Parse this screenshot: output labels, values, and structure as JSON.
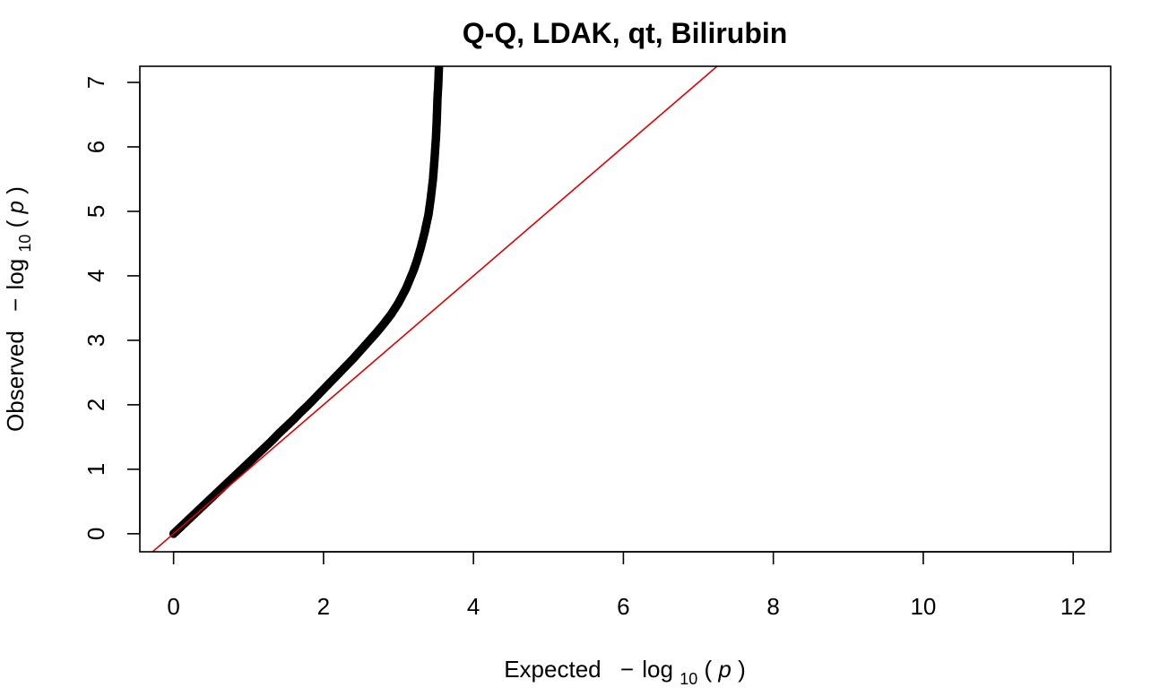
{
  "chart_data": {
    "type": "scatter",
    "title": "Q-Q, LDAK, qt, Bilirubin",
    "xlabel": {
      "prefix": "Expected",
      "minus": "−",
      "log": "log",
      "base": "10",
      "open": "(",
      "var": "p",
      "close": ")"
    },
    "ylabel": {
      "prefix": "Observed",
      "minus": "−",
      "log": "log",
      "base": "10",
      "open": "(",
      "var": "p",
      "close": ")"
    },
    "xlim": [
      -0.45,
      12.5
    ],
    "ylim": [
      -0.28,
      7.25
    ],
    "x_ticks": [
      0,
      2,
      4,
      6,
      8,
      10,
      12
    ],
    "y_ticks": [
      0,
      1,
      2,
      3,
      4,
      5,
      6,
      7
    ],
    "x_tick_labels": [
      "0",
      "2",
      "4",
      "6",
      "8",
      "10",
      "12"
    ],
    "y_tick_labels": [
      "0",
      "1",
      "2",
      "3",
      "4",
      "5",
      "6",
      "7"
    ],
    "grid": false,
    "legend": "none",
    "point_color": "#000000",
    "reference_line": {
      "slope": 1,
      "intercept": 0,
      "color": "#dd0000"
    },
    "series": [
      {
        "x": [
          0.0,
          0.1,
          0.2,
          0.3,
          0.4,
          0.5,
          0.6,
          0.7,
          0.8,
          0.9,
          1.0,
          1.1,
          1.2,
          1.3,
          1.4,
          1.5,
          1.6,
          1.7,
          1.8,
          1.9,
          2.0,
          2.1,
          2.2,
          2.3,
          2.4,
          2.5,
          2.6,
          2.7,
          2.8,
          2.9,
          3.0,
          3.1,
          3.2,
          3.25,
          3.3,
          3.35,
          3.4,
          3.43,
          3.46,
          3.48,
          3.5,
          3.51,
          3.52,
          3.53,
          3.54
        ],
        "y": [
          0.0,
          0.11,
          0.22,
          0.33,
          0.44,
          0.55,
          0.66,
          0.77,
          0.88,
          0.99,
          1.1,
          1.21,
          1.32,
          1.43,
          1.55,
          1.66,
          1.77,
          1.89,
          2.0,
          2.12,
          2.24,
          2.36,
          2.48,
          2.6,
          2.72,
          2.85,
          2.98,
          3.11,
          3.25,
          3.4,
          3.58,
          3.8,
          4.08,
          4.25,
          4.45,
          4.68,
          4.95,
          5.2,
          5.5,
          5.8,
          6.15,
          6.4,
          6.75,
          6.95,
          7.25
        ]
      }
    ]
  }
}
